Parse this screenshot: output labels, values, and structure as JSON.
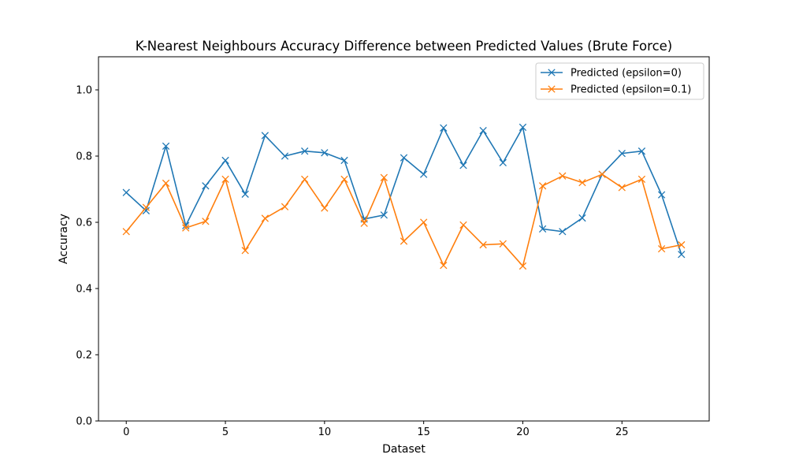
{
  "chart_data": {
    "type": "line",
    "title": "K-Nearest Neighbours Accuracy Difference between Predicted Values (Brute Force)",
    "xlabel": "Dataset",
    "ylabel": "Accuracy",
    "xlim": [
      -1.4,
      29.4
    ],
    "ylim": [
      0.0,
      1.1
    ],
    "xticks": [
      0,
      5,
      10,
      15,
      20,
      25
    ],
    "yticks": [
      0.0,
      0.2,
      0.4,
      0.6,
      0.8,
      1.0
    ],
    "grid": false,
    "legend_position": "top-right",
    "marker": "x",
    "x": [
      0,
      1,
      2,
      3,
      4,
      5,
      6,
      7,
      8,
      9,
      10,
      11,
      12,
      13,
      14,
      15,
      16,
      17,
      18,
      19,
      20,
      21,
      22,
      23,
      24,
      25,
      26,
      27,
      28
    ],
    "series": [
      {
        "name": "Predicted (epsilon=0)",
        "color": "#1f77b4",
        "values": [
          0.69,
          0.635,
          0.83,
          0.59,
          0.71,
          0.787,
          0.685,
          0.862,
          0.8,
          0.815,
          0.81,
          0.787,
          0.61,
          0.622,
          0.795,
          0.745,
          0.885,
          0.772,
          0.877,
          0.78,
          0.887,
          0.58,
          0.572,
          0.613,
          0.745,
          0.808,
          0.815,
          0.683,
          0.503
        ]
      },
      {
        "name": "Predicted (epsilon=0.1)",
        "color": "#ff7f0e",
        "values": [
          0.572,
          0.645,
          0.718,
          0.583,
          0.603,
          0.73,
          0.515,
          0.612,
          0.647,
          0.73,
          0.643,
          0.73,
          0.597,
          0.735,
          0.543,
          0.6,
          0.47,
          0.592,
          0.532,
          0.535,
          0.468,
          0.71,
          0.74,
          0.72,
          0.745,
          0.705,
          0.73,
          0.52,
          0.532
        ]
      }
    ]
  }
}
